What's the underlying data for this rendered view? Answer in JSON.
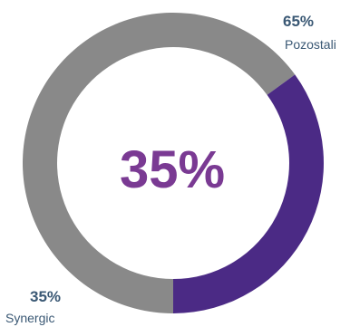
{
  "chart_data": {
    "type": "pie",
    "style": "donut",
    "center_label": "35%",
    "slices": [
      {
        "label": "Pozostali",
        "value": 65,
        "value_label": "65%",
        "color": "#898989"
      },
      {
        "label": "Synergic",
        "value": 35,
        "value_label": "35%",
        "color": "#4b2a85"
      }
    ],
    "colors": {
      "center_text": "#7a3a93",
      "value_text": "#3a5874",
      "name_text": "#3a5874"
    }
  }
}
